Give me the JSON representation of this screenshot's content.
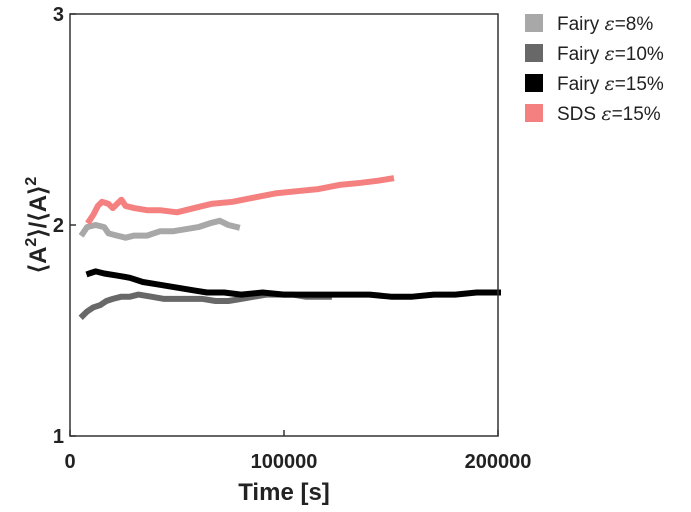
{
  "chart_data": {
    "type": "line",
    "title": "",
    "xlabel": "Time [s]",
    "ylabel_parts": {
      "open": "⟨A",
      "sup1": "2",
      "mid": "⟩/⟨A⟩",
      "sup2": "2"
    },
    "xlim": [
      0,
      200000
    ],
    "ylim": [
      1,
      3
    ],
    "xticks": [
      0,
      100000,
      200000
    ],
    "xtick_labels": [
      "0",
      "100000",
      "200000"
    ],
    "yticks": [
      1,
      2,
      3
    ],
    "ytick_labels": [
      "1",
      "2",
      "3"
    ],
    "grid": false,
    "legend_position": "outside-top-right",
    "series": [
      {
        "name": "Fairy ε=8%",
        "legend_prefix": "Fairy ",
        "legend_eps": "ε",
        "legend_suffix": "=8%",
        "color": "#a8a8a8",
        "points": [
          [
            6000,
            1.96
          ],
          [
            8000,
            1.99
          ],
          [
            12000,
            2.0
          ],
          [
            16000,
            1.99
          ],
          [
            18000,
            1.96
          ],
          [
            22000,
            1.95
          ],
          [
            26000,
            1.94
          ],
          [
            30000,
            1.95
          ],
          [
            36000,
            1.95
          ],
          [
            42000,
            1.97
          ],
          [
            48000,
            1.97
          ],
          [
            54000,
            1.98
          ],
          [
            60000,
            1.99
          ],
          [
            66000,
            2.01
          ],
          [
            70000,
            2.02
          ],
          [
            74000,
            2.0
          ],
          [
            78000,
            1.99
          ]
        ]
      },
      {
        "name": "Fairy ε=10%",
        "legend_prefix": "Fairy ",
        "legend_eps": "ε",
        "legend_suffix": "=10%",
        "color": "#686868",
        "points": [
          [
            6000,
            1.57
          ],
          [
            8000,
            1.59
          ],
          [
            11000,
            1.61
          ],
          [
            14000,
            1.62
          ],
          [
            17000,
            1.64
          ],
          [
            20000,
            1.65
          ],
          [
            24000,
            1.66
          ],
          [
            28000,
            1.66
          ],
          [
            32000,
            1.67
          ],
          [
            38000,
            1.66
          ],
          [
            44000,
            1.65
          ],
          [
            50000,
            1.65
          ],
          [
            56000,
            1.65
          ],
          [
            62000,
            1.65
          ],
          [
            68000,
            1.64
          ],
          [
            74000,
            1.64
          ],
          [
            80000,
            1.65
          ],
          [
            86000,
            1.66
          ],
          [
            92000,
            1.67
          ],
          [
            98000,
            1.67
          ],
          [
            104000,
            1.67
          ],
          [
            110000,
            1.66
          ],
          [
            116000,
            1.66
          ],
          [
            121000,
            1.66
          ]
        ]
      },
      {
        "name": "Fairy ε=15%",
        "legend_prefix": "Fairy ",
        "legend_eps": "ε",
        "legend_suffix": "=15%",
        "color": "#000000",
        "points": [
          [
            9000,
            1.77
          ],
          [
            12000,
            1.78
          ],
          [
            16000,
            1.77
          ],
          [
            22000,
            1.76
          ],
          [
            28000,
            1.75
          ],
          [
            34000,
            1.73
          ],
          [
            40000,
            1.72
          ],
          [
            46000,
            1.71
          ],
          [
            52000,
            1.7
          ],
          [
            58000,
            1.69
          ],
          [
            64000,
            1.68
          ],
          [
            72000,
            1.68
          ],
          [
            80000,
            1.67
          ],
          [
            90000,
            1.68
          ],
          [
            100000,
            1.67
          ],
          [
            110000,
            1.67
          ],
          [
            120000,
            1.67
          ],
          [
            130000,
            1.67
          ],
          [
            140000,
            1.67
          ],
          [
            150000,
            1.66
          ],
          [
            160000,
            1.66
          ],
          [
            170000,
            1.67
          ],
          [
            180000,
            1.67
          ],
          [
            190000,
            1.68
          ],
          [
            200000,
            1.68
          ]
        ]
      },
      {
        "name": "SDS ε=15%",
        "legend_prefix": "SDS ",
        "legend_eps": "ε",
        "legend_suffix": "=15%",
        "color": "#f58080",
        "points": [
          [
            9000,
            2.02
          ],
          [
            11000,
            2.05
          ],
          [
            13000,
            2.09
          ],
          [
            15000,
            2.11
          ],
          [
            18000,
            2.1
          ],
          [
            20000,
            2.08
          ],
          [
            22000,
            2.1
          ],
          [
            24000,
            2.12
          ],
          [
            26000,
            2.09
          ],
          [
            30000,
            2.08
          ],
          [
            36000,
            2.07
          ],
          [
            42000,
            2.07
          ],
          [
            50000,
            2.06
          ],
          [
            58000,
            2.08
          ],
          [
            66000,
            2.1
          ],
          [
            76000,
            2.11
          ],
          [
            86000,
            2.13
          ],
          [
            96000,
            2.15
          ],
          [
            106000,
            2.16
          ],
          [
            116000,
            2.17
          ],
          [
            126000,
            2.19
          ],
          [
            136000,
            2.2
          ],
          [
            144000,
            2.21
          ],
          [
            150000,
            2.22
          ]
        ]
      }
    ]
  }
}
